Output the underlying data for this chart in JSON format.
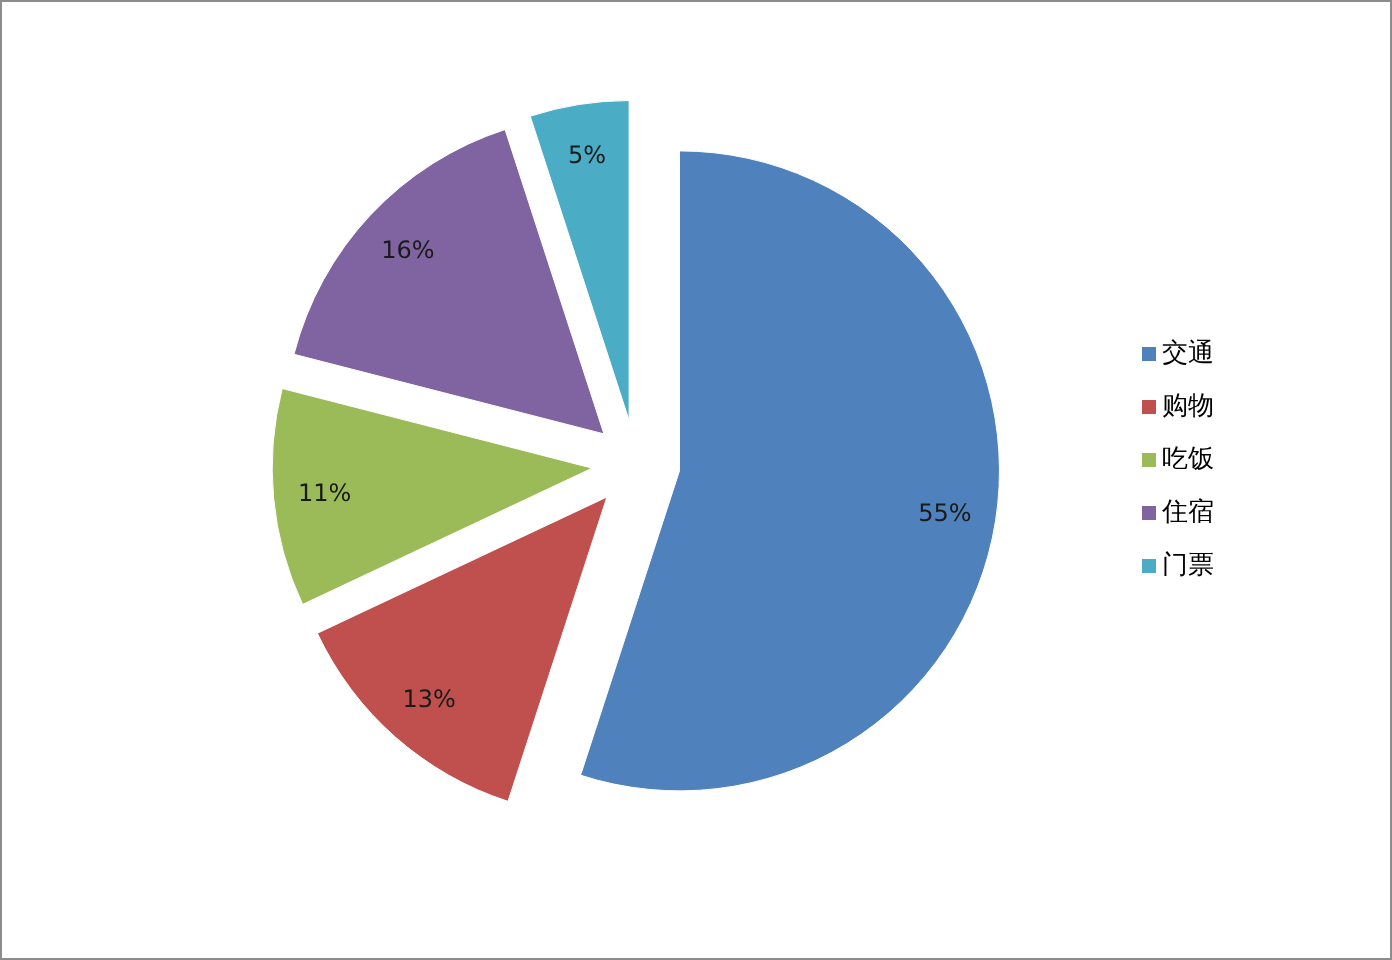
{
  "chart_data": {
    "type": "pie",
    "categories": [
      "交通",
      "购物",
      "吃饭",
      "住宿",
      "门票"
    ],
    "values": [
      55,
      13,
      11,
      16,
      5
    ],
    "value_labels": [
      "55%",
      "13%",
      "11%",
      "16%",
      "5%"
    ],
    "colors": [
      "#4f81bd",
      "#c0504d",
      "#9bbb59",
      "#8064a2",
      "#4bacc6"
    ],
    "legend": "right"
  }
}
